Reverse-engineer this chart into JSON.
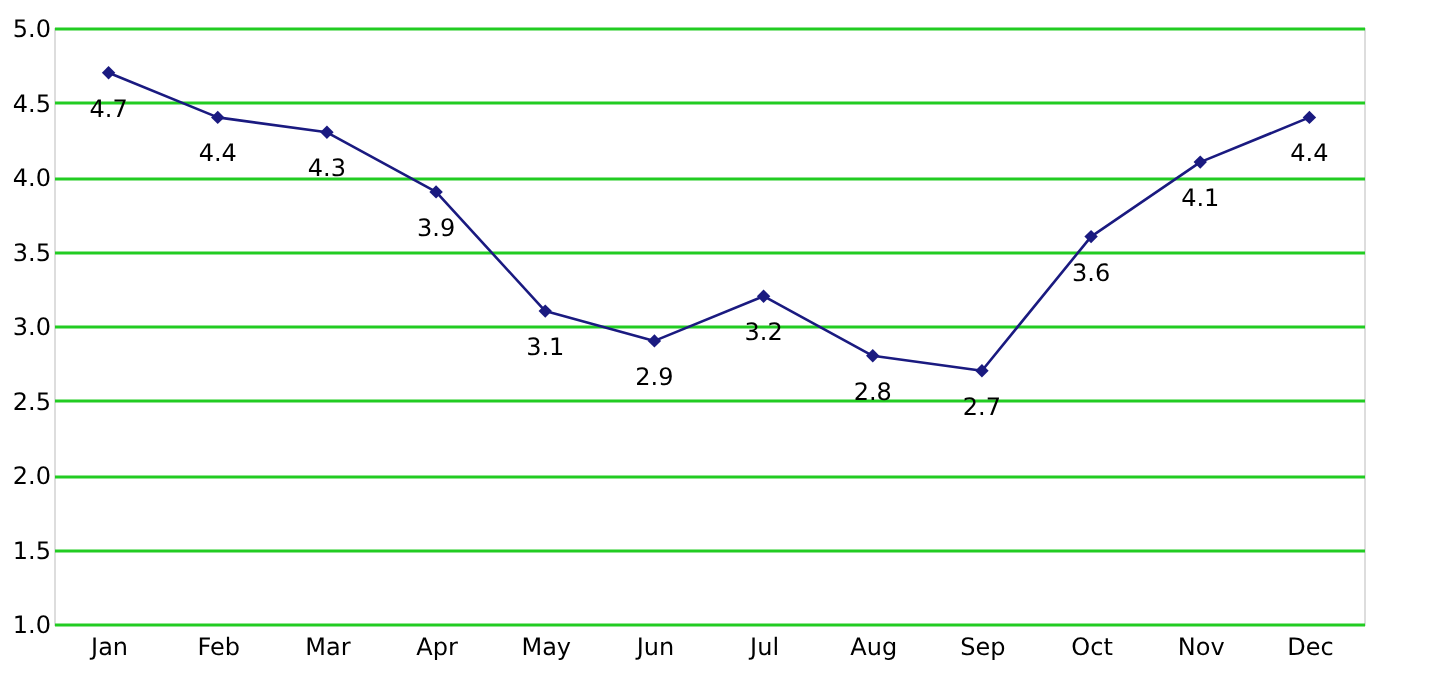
{
  "chart_data": {
    "type": "line",
    "categories": [
      "Jan",
      "Feb",
      "Mar",
      "Apr",
      "May",
      "Jun",
      "Jul",
      "Aug",
      "Sep",
      "Oct",
      "Nov",
      "Dec"
    ],
    "series": [
      {
        "color": "#1a1a80",
        "values": [
          4.7,
          4.4,
          4.3,
          3.9,
          3.1,
          2.9,
          3.2,
          2.8,
          2.7,
          3.6,
          4.1,
          4.4
        ]
      }
    ],
    "ylim": [
      1.0,
      5.0
    ],
    "yticks": [
      {
        "value": 1,
        "label": "1.0"
      },
      {
        "value": 1.5,
        "label": "1.5"
      },
      {
        "value": 2,
        "label": "2.0"
      },
      {
        "value": 2.5,
        "label": "2.5"
      },
      {
        "value": 3,
        "label": "3.0"
      },
      {
        "value": 3.5,
        "label": "3.5"
      },
      {
        "value": 4,
        "label": "4.0"
      },
      {
        "value": 4.5,
        "label": "4.5"
      },
      {
        "value": 5,
        "label": "5.0"
      }
    ],
    "grid": "y",
    "marker": "diamond",
    "line_style": "solid",
    "data_labels": true
  }
}
